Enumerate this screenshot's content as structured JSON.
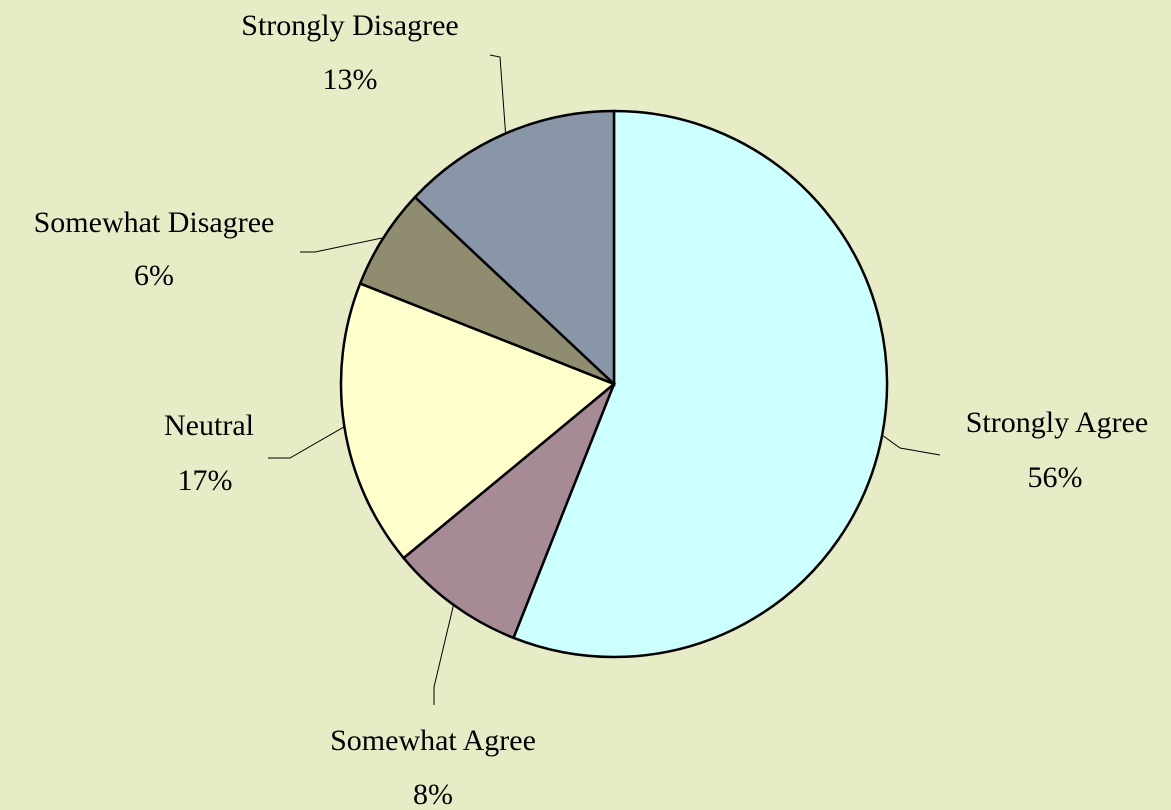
{
  "chart_data": {
    "type": "pie",
    "categories": [
      "Strongly Agree",
      "Somewhat Agree",
      "Neutral",
      "Somewhat Disagree",
      "Strongly Disagree"
    ],
    "values": [
      56,
      8,
      17,
      6,
      13
    ],
    "value_labels": [
      "56%",
      "8%",
      "17%",
      "6%",
      "13%"
    ],
    "colors": [
      "#ccffff",
      "#a68b96",
      "#ffffcc",
      "#8f8c70",
      "#8896a8"
    ]
  }
}
